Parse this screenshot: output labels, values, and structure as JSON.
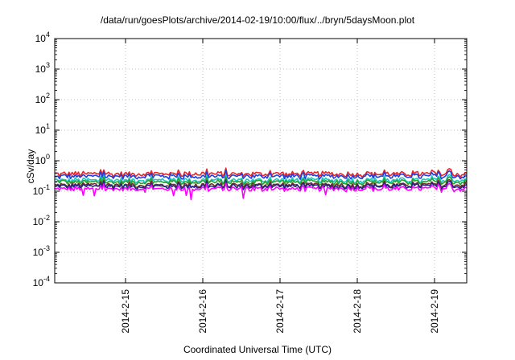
{
  "chart_data": {
    "type": "line",
    "title": "/data/run/goesPlots/archive/2014-02-19/10:00/flux/../bryn/5daysMoon.plot",
    "xlabel": "Coordinated Universal Time (UTC)",
    "ylabel": "cSv/day",
    "yscale": "log",
    "ylim": [
      0.0001,
      10000
    ],
    "xlim": [
      "2014-02-14T02:00",
      "2014-02-19T10:00"
    ],
    "y_ticks": [
      {
        "value": 0.0001,
        "base": "10",
        "exp": "-4"
      },
      {
        "value": 0.001,
        "base": "10",
        "exp": "-3"
      },
      {
        "value": 0.01,
        "base": "10",
        "exp": "-2"
      },
      {
        "value": 0.1,
        "base": "10",
        "exp": "-1"
      },
      {
        "value": 1,
        "base": "10",
        "exp": "0"
      },
      {
        "value": 10,
        "base": "10",
        "exp": "1"
      },
      {
        "value": 100,
        "base": "10",
        "exp": "2"
      },
      {
        "value": 1000,
        "base": "10",
        "exp": "3"
      },
      {
        "value": 10000,
        "base": "10",
        "exp": "4"
      }
    ],
    "x_ticks": [
      "2014-2-15",
      "2014-2-16",
      "2014-2-17",
      "2014-2-18",
      "2014-2-19"
    ],
    "x_tick_dates": [
      "2014-02-15T00:00",
      "2014-02-16T00:00",
      "2014-02-17T00:00",
      "2014-02-18T00:00",
      "2014-02-19T00:00"
    ],
    "grid": true,
    "legend": "none",
    "series": [
      {
        "color": "#e8252a",
        "level": 0.37
      },
      {
        "color": "#1f3fe0",
        "level": 0.31
      },
      {
        "color": "#19c7c3",
        "level": 0.23
      },
      {
        "color": "#2ba02b",
        "level": 0.2
      },
      {
        "color": "#7a2a2a",
        "level": 0.16
      },
      {
        "color": "#1b2a8a",
        "level": 0.145
      },
      {
        "color": "#ff00ff",
        "level": 0.12
      }
    ]
  }
}
